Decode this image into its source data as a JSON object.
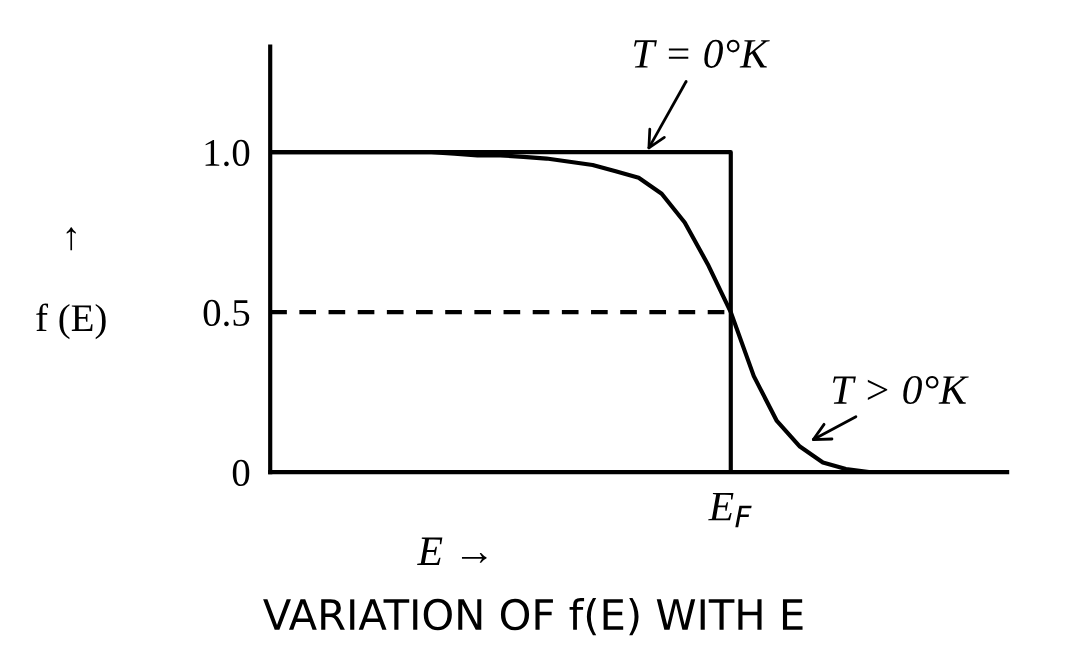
{
  "chart_data": {
    "type": "line",
    "title": "VARIATION OF f(E) WITH E",
    "xlabel": "E →",
    "ylabel": "↑\n\nf (E)",
    "categories": [
      null,
      null,
      null,
      null,
      null,
      null,
      null,
      null,
      null,
      null,
      null,
      null,
      null,
      null,
      null,
      null,
      null,
      null,
      null,
      null,
      "E$_{F}$",
      null,
      null,
      null,
      null,
      null,
      null,
      null,
      null,
      null,
      null,
      null,
      null
    ],
    "ylim": [
      0,
      1.33
    ],
    "yticks": [
      {
        "value": 0,
        "label": "0"
      },
      {
        "value": 0.5,
        "label": "0.5"
      },
      {
        "value": 1.0,
        "label": "1.0"
      }
    ],
    "grid": false,
    "legend": false,
    "marker": "none",
    "series": [
      {
        "type": "step",
        "color": "#000000",
        "line_style": "solid",
        "values": [
          1,
          1,
          1,
          1,
          1,
          1,
          1,
          1,
          1,
          1,
          1,
          1,
          1,
          1,
          1,
          1,
          1,
          1,
          1,
          1,
          0,
          null,
          null,
          null,
          null,
          null,
          null,
          null,
          null,
          null,
          null,
          null,
          null
        ]
      },
      {
        "color": "#000000",
        "line_style": "solid",
        "values": [
          1.0,
          1.0,
          1.0,
          1.0,
          1.0,
          1.0,
          1.0,
          1.0,
          0.995,
          0.99,
          0.99,
          0.985,
          0.98,
          0.97,
          0.96,
          0.94,
          0.92,
          0.87,
          0.78,
          0.65,
          0.5,
          0.3,
          0.16,
          0.08,
          0.03,
          0.01,
          0,
          null,
          null,
          null,
          null,
          null,
          null
        ]
      },
      {
        "color": "#000000",
        "line_style": "dashed",
        "values": [
          0.5,
          0.5,
          0.5,
          0.5,
          0.5,
          0.5,
          0.5,
          0.5,
          0.5,
          0.5,
          0.5,
          0.5,
          0.5,
          0.5,
          0.5,
          0.5,
          0.5,
          0.5,
          0.5,
          0.5,
          0.5,
          null,
          null,
          null,
          null,
          null,
          null,
          null,
          null,
          null,
          null,
          null,
          null
        ]
      }
    ],
    "annotations": [
      "T = 0°K",
      "T > 0°K"
    ]
  }
}
